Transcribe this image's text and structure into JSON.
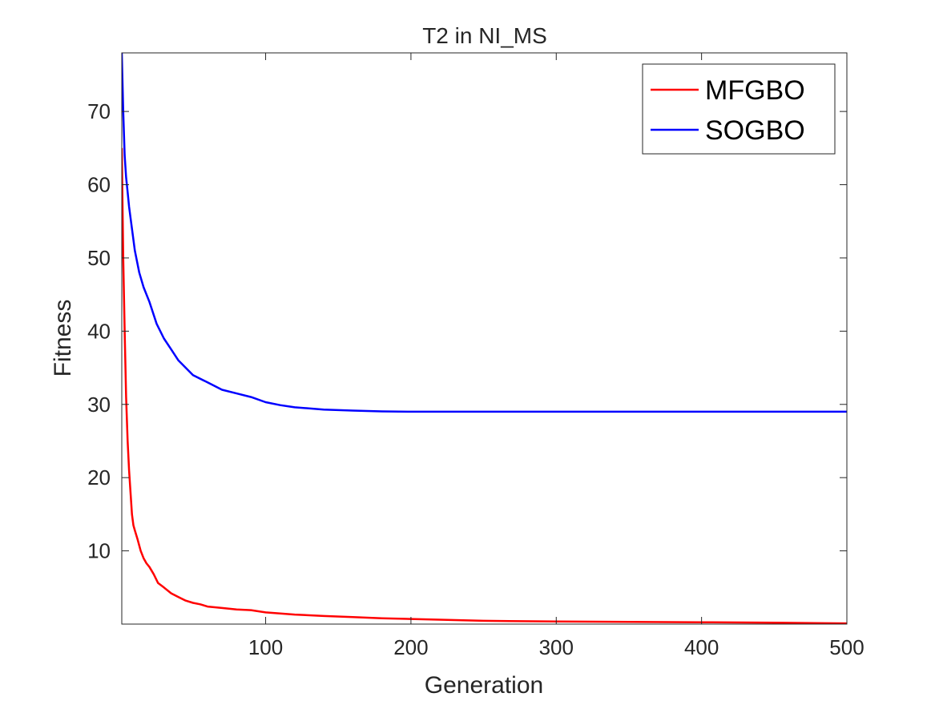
{
  "chart_data": {
    "type": "line",
    "title": "T2 in NI_MS",
    "xlabel": "Generation",
    "ylabel": "Fitness",
    "xlim": [
      1,
      500
    ],
    "ylim": [
      0,
      78
    ],
    "xticks": [
      100,
      200,
      300,
      400,
      500
    ],
    "yticks": [
      10,
      20,
      30,
      40,
      50,
      60,
      70
    ],
    "grid": false,
    "legend_position": "top-right",
    "series": [
      {
        "name": "MFGBO",
        "color": "#ff0000",
        "x": [
          1,
          2,
          3,
          4,
          5,
          6,
          7,
          8,
          9,
          10,
          12,
          14,
          16,
          18,
          20,
          23,
          26,
          30,
          35,
          40,
          45,
          50,
          55,
          60,
          70,
          80,
          90,
          100,
          120,
          140,
          160,
          180,
          200,
          250,
          300,
          350,
          400,
          450,
          500
        ],
        "y": [
          65,
          50,
          40,
          31,
          25,
          21,
          18,
          15,
          13.5,
          12.8,
          11.5,
          10,
          9,
          8.3,
          7.8,
          6.8,
          5.6,
          5,
          4.2,
          3.7,
          3.2,
          2.9,
          2.7,
          2.4,
          2.2,
          2.0,
          1.9,
          1.6,
          1.3,
          1.1,
          0.95,
          0.8,
          0.7,
          0.45,
          0.35,
          0.3,
          0.25,
          0.2,
          0.1
        ]
      },
      {
        "name": "SOGBO",
        "color": "#0000ff",
        "x": [
          1,
          2,
          3,
          4,
          5,
          6,
          8,
          10,
          13,
          16,
          20,
          25,
          30,
          35,
          40,
          50,
          60,
          70,
          80,
          90,
          100,
          110,
          120,
          140,
          160,
          180,
          200,
          250,
          300,
          400,
          500
        ],
        "y": [
          78,
          70,
          64,
          61,
          59,
          57,
          54,
          51,
          48,
          46,
          44,
          41,
          39,
          37.5,
          36,
          34,
          33,
          32,
          31.5,
          31,
          30.3,
          29.9,
          29.6,
          29.3,
          29.15,
          29.05,
          29.0,
          29.0,
          29.0,
          29.0,
          29.0
        ]
      }
    ]
  }
}
